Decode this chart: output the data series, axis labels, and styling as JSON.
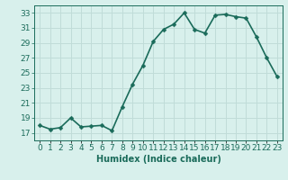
{
  "x": [
    0,
    1,
    2,
    3,
    4,
    5,
    6,
    7,
    8,
    9,
    10,
    11,
    12,
    13,
    14,
    15,
    16,
    17,
    18,
    19,
    20,
    21,
    22,
    23
  ],
  "y": [
    18.0,
    17.5,
    17.7,
    19.0,
    17.8,
    17.9,
    18.0,
    17.3,
    20.5,
    23.5,
    26.0,
    29.2,
    30.8,
    31.5,
    33.0,
    30.8,
    30.3,
    32.7,
    32.8,
    32.5,
    32.3,
    29.8,
    27.0,
    24.5
  ],
  "line_color": "#1a6b5a",
  "marker_color": "#1a6b5a",
  "bg_color": "#d8f0ec",
  "grid_color": "#c0dcd8",
  "xlabel": "Humidex (Indice chaleur)",
  "xlim": [
    -0.5,
    23.5
  ],
  "ylim": [
    16,
    34
  ],
  "yticks": [
    17,
    19,
    21,
    23,
    25,
    27,
    29,
    31,
    33
  ],
  "xtick_labels": [
    "0",
    "1",
    "2",
    "3",
    "4",
    "5",
    "6",
    "7",
    "8",
    "9",
    "10",
    "11",
    "12",
    "13",
    "14",
    "15",
    "16",
    "17",
    "18",
    "19",
    "20",
    "21",
    "22",
    "23"
  ],
  "xlabel_fontsize": 7,
  "tick_fontsize": 6.5,
  "linewidth": 1.2,
  "markersize": 2.5
}
